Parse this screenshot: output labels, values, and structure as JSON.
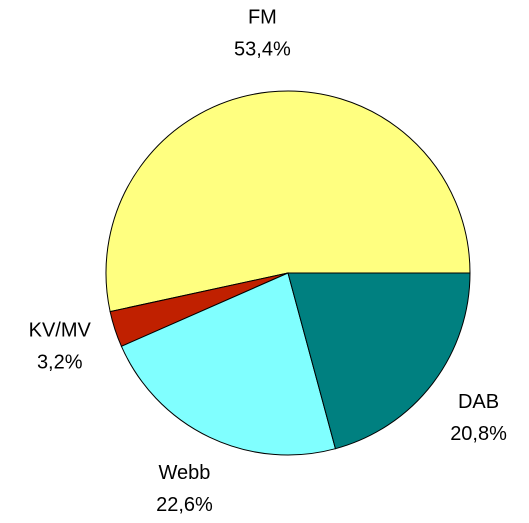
{
  "chart_data": {
    "type": "pie",
    "categories": [
      "FM",
      "KV/MV",
      "Webb",
      "DAB"
    ],
    "values": [
      53.4,
      3.2,
      22.6,
      20.8
    ],
    "value_labels": [
      "53,4%",
      "3,2%",
      "22,6%",
      "20,8%"
    ],
    "colors": [
      "#ffff80",
      "#c02000",
      "#80ffff",
      "#008080"
    ]
  }
}
